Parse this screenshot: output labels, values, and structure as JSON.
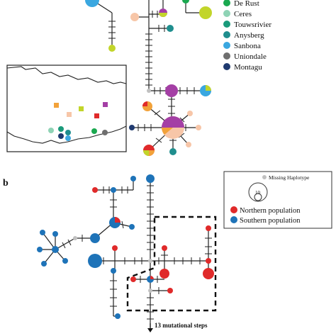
{
  "panel_b_label": "b",
  "legend_a": {
    "items": [
      {
        "label": "De Rust",
        "color": "#1aa84f"
      },
      {
        "label": "Ceres",
        "color": "#8fd3b5"
      },
      {
        "label": "Touwsrivier",
        "color": "#1a9a7a"
      },
      {
        "label": "Anysberg",
        "color": "#1f8e8e"
      },
      {
        "label": "Sanbona",
        "color": "#3aa7e0"
      },
      {
        "label": "Uniondale",
        "color": "#6f6f6f"
      },
      {
        "label": "Montagu",
        "color": "#1f3a70"
      }
    ]
  },
  "legend_b": {
    "missing_label": "Missing Haplotype",
    "scale_value": "10",
    "northern_label": "Northern population",
    "southern_label": "Southern population",
    "northern_color": "#e02a2a",
    "southern_color": "#1e73b8",
    "missing_color": "#c0c0c0"
  },
  "mutational_steps_label": "13 mutational steps",
  "colors": {
    "purple": "#a43fa5",
    "lime": "#c2d52a",
    "salmon": "#f7c6a8",
    "orange": "#f2a23a",
    "red": "#e02a2a",
    "blue": "#1e73b8",
    "gray": "#c0c0c0"
  }
}
